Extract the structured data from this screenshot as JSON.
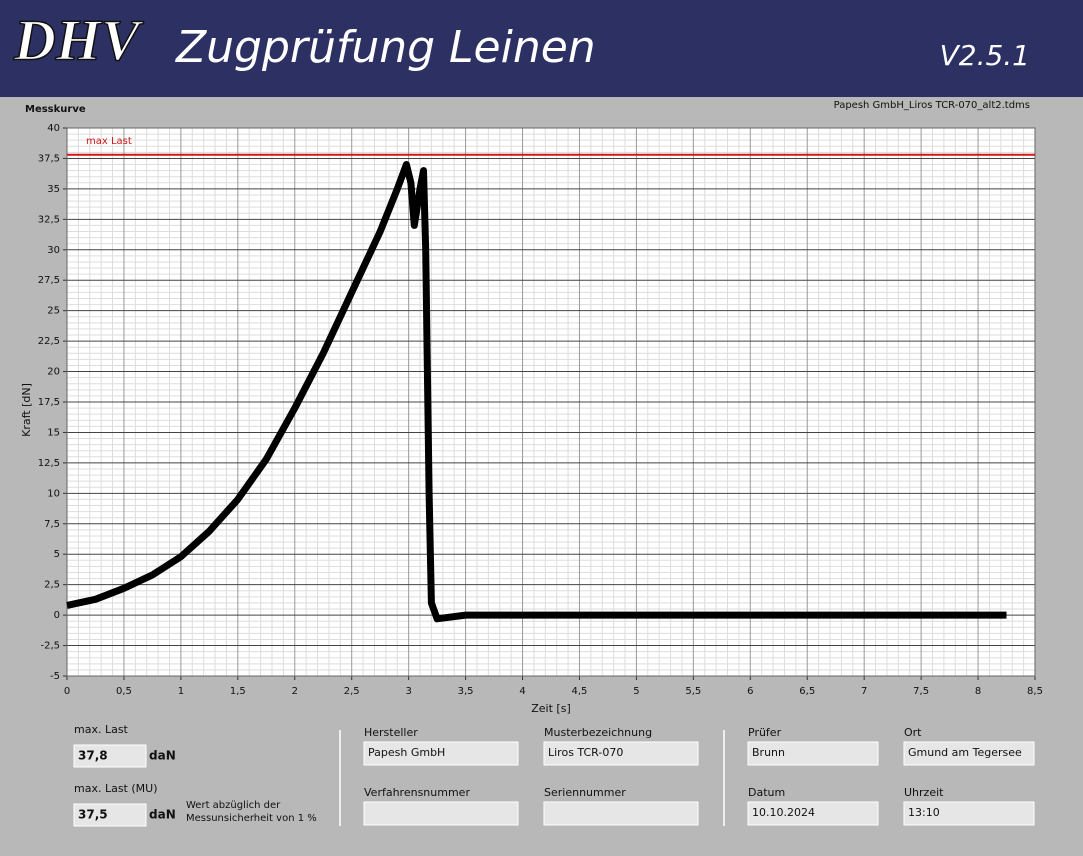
{
  "header": {
    "logo": "DHV",
    "title": "Zugprüfung Leinen",
    "version": "V2.5.1"
  },
  "chart_data": {
    "type": "line",
    "title": "Messkurve",
    "subtitle": "Papesh GmbH_Liros TCR-070_alt2.tdms",
    "x_label": "Zeit [s]",
    "y_label": "Kraft [dN]",
    "color": "#000000",
    "grid": true,
    "x": [
      0,
      0.25,
      0.5,
      0.75,
      1.0,
      1.25,
      1.5,
      1.75,
      2.0,
      2.25,
      2.5,
      2.75,
      2.9,
      2.98,
      3.02,
      3.05,
      3.1,
      3.13,
      3.15,
      3.18,
      3.2,
      3.25,
      3.5,
      4,
      5,
      6,
      7,
      8,
      8.25
    ],
    "values": [
      0.8,
      1.3,
      2.2,
      3.3,
      4.8,
      6.9,
      9.5,
      12.8,
      17,
      21.5,
      26.5,
      31.5,
      35,
      37,
      35.5,
      32,
      35,
      36.5,
      30,
      10,
      1,
      -0.3,
      0,
      0,
      0,
      0,
      0,
      0,
      0
    ],
    "xlim": [
      0,
      8.5
    ],
    "ylim": [
      -5,
      40
    ],
    "xticks": [
      0,
      {
        "value": 0.5,
        "label": "0,5"
      },
      1,
      {
        "value": 1.5,
        "label": "1,5"
      },
      2,
      {
        "value": 2.5,
        "label": "2,5"
      },
      3,
      {
        "value": 3.5,
        "label": "3,5"
      },
      4,
      {
        "value": 4.5,
        "label": "4,5"
      },
      5,
      {
        "value": 5.5,
        "label": "5,5"
      },
      6,
      {
        "value": 6.5,
        "label": "6,5"
      },
      7,
      {
        "value": 7.5,
        "label": "7,5"
      },
      8,
      {
        "value": 8.5,
        "label": "8,5"
      }
    ],
    "yticks": [
      -5,
      {
        "value": -2.5,
        "label": "-2,5"
      },
      0,
      {
        "value": 2.5,
        "label": "2,5"
      },
      5,
      {
        "value": 7.5,
        "label": "7,5"
      },
      10,
      {
        "value": 12.5,
        "label": "12,5"
      },
      15,
      {
        "value": 17.5,
        "label": "17,5"
      },
      20,
      {
        "value": 22.5,
        "label": "22,5"
      },
      25,
      {
        "value": 27.5,
        "label": "27,5"
      },
      30,
      {
        "value": 32.5,
        "label": "32,5"
      },
      35,
      {
        "value": 37.5,
        "label": "37,5"
      },
      40
    ],
    "annotations": [
      {
        "text": "max Last",
        "value": 37.8,
        "color": "#d01818"
      }
    ]
  },
  "results": [
    {
      "label": "max. Last",
      "value": "37,8",
      "unit": "daN"
    },
    {
      "label": "max. Last (MU)",
      "value": "37,5",
      "unit": "daN",
      "note": [
        "Wert abzüglich der",
        "Messunsicherheit von 1 %"
      ]
    }
  ],
  "fields": [
    {
      "label": "Hersteller",
      "value": "Papesh GmbH"
    },
    {
      "label": "Musterbezeichnung",
      "value": "Liros TCR-070"
    },
    {
      "label": "Verfahrensnummer"
    },
    {
      "label": "Seriennummer"
    },
    {
      "label": "Prüfer",
      "value": "Brunn"
    },
    {
      "label": "Ort",
      "value": "Gmund am Tegersee"
    },
    {
      "label": "Datum",
      "value": "10.10.2024"
    },
    {
      "label": "Uhrzeit",
      "value": "13:10"
    }
  ]
}
